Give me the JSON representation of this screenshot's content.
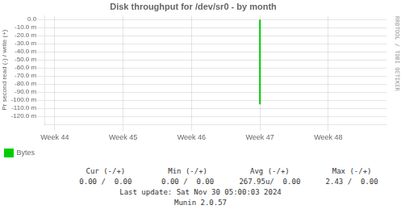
{
  "chart_data": {
    "type": "line",
    "title": "Disk throughput for /dev/sr0 - by month",
    "ylabel": "Pr second read (-) / write (+)",
    "x": [
      3.0,
      3.0
    ],
    "series": [
      {
        "name": "Bytes",
        "color": "#00cc00",
        "values": [
          -105.0,
          0.0
        ]
      }
    ],
    "xlim": [
      -0.15,
      4.85
    ],
    "xticks": [
      {
        "value": 0.0,
        "label": "Week 44"
      },
      {
        "value": 1.0,
        "label": "Week 45"
      },
      {
        "value": 2.0,
        "label": "Week 46"
      },
      {
        "value": 3.0,
        "label": "Week 47"
      },
      {
        "value": 4.0,
        "label": "Week 48"
      }
    ],
    "ylim": [
      -130.0,
      5.0
    ],
    "yticks": [
      {
        "value": 0.0,
        "label": "0.0"
      },
      {
        "value": -10.0,
        "label": "-10.0 m"
      },
      {
        "value": -20.0,
        "label": "-20.0 m"
      },
      {
        "value": -30.0,
        "label": "-30.0 m"
      },
      {
        "value": -40.0,
        "label": "-40.0 m"
      },
      {
        "value": -50.0,
        "label": "-50.0 m"
      },
      {
        "value": -60.0,
        "label": "-60.0 m"
      },
      {
        "value": -70.0,
        "label": "-70.0 m"
      },
      {
        "value": -80.0,
        "label": "-80.0 m"
      },
      {
        "value": -90.0,
        "label": "-90.0 m"
      },
      {
        "value": -100.0,
        "label": "-100.0 m"
      },
      {
        "value": -110.0,
        "label": "-110.0 m"
      },
      {
        "value": -120.0,
        "label": "-120.0 m"
      }
    ],
    "grid": true,
    "legend": "lower left",
    "annotations": [
      "Cur (-/+)",
      "Min (-/+)",
      "Avg (-/+)",
      "Max (-/+)",
      "0.00 /  0.00",
      "0.00 /  0.00",
      "267.95u/  0.00",
      "2.43 /  0.00",
      "Last update: Sat Nov 30 05:00:03 2024",
      "Munin 2.0.57",
      "RRDTOOL / TOBI OETIKER"
    ]
  }
}
